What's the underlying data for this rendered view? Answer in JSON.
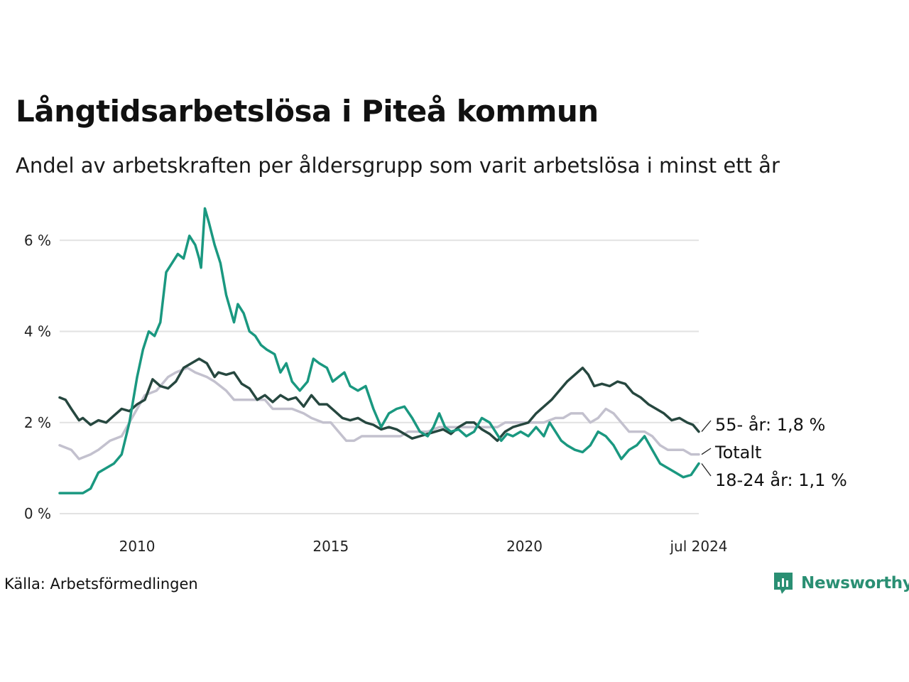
{
  "header": {
    "title": "Långtidsarbetslösa i Piteå kommun",
    "subtitle": "Andel av arbetskraften per åldersgrupp som varit arbetslösa i minst ett år"
  },
  "footer": {
    "source": "Källa: Arbetsförmedlingen",
    "brand": "Newsworthy",
    "brand_icon": "newsworthy-logo-icon"
  },
  "colors": {
    "youth": "#1a9880",
    "senior": "#26473f",
    "total": "#c3c1ce",
    "grid": "#e2e2e2",
    "brand": "#2a8f73"
  },
  "chart_data": {
    "type": "line",
    "title": "Långtidsarbetslösa i Piteå kommun",
    "subtitle": "Andel av arbetskraften per åldersgrupp som varit arbetslösa i minst ett år",
    "xlabel": "",
    "ylabel": "",
    "xlim": [
      2008.0,
      2024.5
    ],
    "ylim": [
      0,
      6.8
    ],
    "grid": true,
    "y_ticks": [
      {
        "value": 0,
        "label": "0 %"
      },
      {
        "value": 2,
        "label": "2 %"
      },
      {
        "value": 4,
        "label": "4 %"
      },
      {
        "value": 6,
        "label": "6 %"
      }
    ],
    "x_ticks": [
      {
        "value": 2010,
        "label": "2010"
      },
      {
        "value": 2015,
        "label": "2015"
      },
      {
        "value": 2020,
        "label": "2020"
      },
      {
        "value": 2024.5,
        "label": "jul 2024"
      }
    ],
    "series": [
      {
        "name": "Totalt",
        "key": "total",
        "label": "Totalt",
        "points": [
          [
            2008.0,
            1.5
          ],
          [
            2008.3,
            1.4
          ],
          [
            2008.5,
            1.2
          ],
          [
            2008.8,
            1.3
          ],
          [
            2009.0,
            1.4
          ],
          [
            2009.3,
            1.6
          ],
          [
            2009.6,
            1.7
          ],
          [
            2009.8,
            2.0
          ],
          [
            2010.0,
            2.3
          ],
          [
            2010.2,
            2.6
          ],
          [
            2010.5,
            2.7
          ],
          [
            2010.8,
            3.0
          ],
          [
            2011.0,
            3.1
          ],
          [
            2011.3,
            3.2
          ],
          [
            2011.5,
            3.1
          ],
          [
            2011.8,
            3.0
          ],
          [
            2012.0,
            2.9
          ],
          [
            2012.3,
            2.7
          ],
          [
            2012.5,
            2.5
          ],
          [
            2012.8,
            2.5
          ],
          [
            2013.0,
            2.5
          ],
          [
            2013.3,
            2.5
          ],
          [
            2013.5,
            2.3
          ],
          [
            2013.8,
            2.3
          ],
          [
            2014.0,
            2.3
          ],
          [
            2014.3,
            2.2
          ],
          [
            2014.5,
            2.1
          ],
          [
            2014.8,
            2.0
          ],
          [
            2015.0,
            2.0
          ],
          [
            2015.2,
            1.8
          ],
          [
            2015.4,
            1.6
          ],
          [
            2015.6,
            1.6
          ],
          [
            2015.8,
            1.7
          ],
          [
            2016.0,
            1.7
          ],
          [
            2016.3,
            1.7
          ],
          [
            2016.5,
            1.7
          ],
          [
            2016.8,
            1.7
          ],
          [
            2017.0,
            1.8
          ],
          [
            2017.3,
            1.8
          ],
          [
            2017.5,
            1.8
          ],
          [
            2017.8,
            1.9
          ],
          [
            2018.0,
            1.9
          ],
          [
            2018.3,
            1.9
          ],
          [
            2018.5,
            1.9
          ],
          [
            2018.8,
            1.9
          ],
          [
            2019.0,
            1.9
          ],
          [
            2019.3,
            1.9
          ],
          [
            2019.5,
            2.0
          ],
          [
            2019.8,
            2.0
          ],
          [
            2020.0,
            2.0
          ],
          [
            2020.3,
            2.0
          ],
          [
            2020.5,
            2.0
          ],
          [
            2020.8,
            2.1
          ],
          [
            2021.0,
            2.1
          ],
          [
            2021.2,
            2.2
          ],
          [
            2021.5,
            2.2
          ],
          [
            2021.7,
            2.0
          ],
          [
            2021.9,
            2.1
          ],
          [
            2022.1,
            2.3
          ],
          [
            2022.3,
            2.2
          ],
          [
            2022.5,
            2.0
          ],
          [
            2022.7,
            1.8
          ],
          [
            2022.9,
            1.8
          ],
          [
            2023.1,
            1.8
          ],
          [
            2023.3,
            1.7
          ],
          [
            2023.5,
            1.5
          ],
          [
            2023.7,
            1.4
          ],
          [
            2023.9,
            1.4
          ],
          [
            2024.1,
            1.4
          ],
          [
            2024.3,
            1.3
          ],
          [
            2024.5,
            1.3
          ]
        ]
      },
      {
        "name": "55- år",
        "key": "senior",
        "label": "55- år: 1,8 %",
        "points": [
          [
            2008.0,
            2.55
          ],
          [
            2008.15,
            2.5
          ],
          [
            2008.3,
            2.3
          ],
          [
            2008.5,
            2.05
          ],
          [
            2008.6,
            2.1
          ],
          [
            2008.8,
            1.95
          ],
          [
            2009.0,
            2.05
          ],
          [
            2009.2,
            2.0
          ],
          [
            2009.4,
            2.15
          ],
          [
            2009.6,
            2.3
          ],
          [
            2009.8,
            2.25
          ],
          [
            2010.0,
            2.4
          ],
          [
            2010.2,
            2.5
          ],
          [
            2010.4,
            2.95
          ],
          [
            2010.6,
            2.8
          ],
          [
            2010.8,
            2.75
          ],
          [
            2011.0,
            2.9
          ],
          [
            2011.2,
            3.2
          ],
          [
            2011.4,
            3.3
          ],
          [
            2011.6,
            3.4
          ],
          [
            2011.8,
            3.3
          ],
          [
            2012.0,
            3.0
          ],
          [
            2012.1,
            3.1
          ],
          [
            2012.3,
            3.05
          ],
          [
            2012.5,
            3.1
          ],
          [
            2012.7,
            2.85
          ],
          [
            2012.9,
            2.75
          ],
          [
            2013.1,
            2.5
          ],
          [
            2013.3,
            2.6
          ],
          [
            2013.5,
            2.45
          ],
          [
            2013.7,
            2.6
          ],
          [
            2013.9,
            2.5
          ],
          [
            2014.1,
            2.55
          ],
          [
            2014.3,
            2.35
          ],
          [
            2014.5,
            2.6
          ],
          [
            2014.7,
            2.4
          ],
          [
            2014.9,
            2.4
          ],
          [
            2015.1,
            2.25
          ],
          [
            2015.3,
            2.1
          ],
          [
            2015.5,
            2.05
          ],
          [
            2015.7,
            2.1
          ],
          [
            2015.9,
            2.0
          ],
          [
            2016.1,
            1.95
          ],
          [
            2016.3,
            1.85
          ],
          [
            2016.5,
            1.9
          ],
          [
            2016.7,
            1.85
          ],
          [
            2016.9,
            1.75
          ],
          [
            2017.1,
            1.65
          ],
          [
            2017.3,
            1.7
          ],
          [
            2017.5,
            1.75
          ],
          [
            2017.7,
            1.8
          ],
          [
            2017.9,
            1.85
          ],
          [
            2018.1,
            1.75
          ],
          [
            2018.3,
            1.9
          ],
          [
            2018.5,
            2.0
          ],
          [
            2018.7,
            2.0
          ],
          [
            2018.9,
            1.85
          ],
          [
            2019.1,
            1.75
          ],
          [
            2019.3,
            1.6
          ],
          [
            2019.5,
            1.8
          ],
          [
            2019.7,
            1.9
          ],
          [
            2019.9,
            1.95
          ],
          [
            2020.1,
            2.0
          ],
          [
            2020.3,
            2.2
          ],
          [
            2020.5,
            2.35
          ],
          [
            2020.7,
            2.5
          ],
          [
            2020.9,
            2.7
          ],
          [
            2021.1,
            2.9
          ],
          [
            2021.3,
            3.05
          ],
          [
            2021.5,
            3.2
          ],
          [
            2021.65,
            3.05
          ],
          [
            2021.8,
            2.8
          ],
          [
            2022.0,
            2.85
          ],
          [
            2022.2,
            2.8
          ],
          [
            2022.4,
            2.9
          ],
          [
            2022.6,
            2.85
          ],
          [
            2022.8,
            2.65
          ],
          [
            2023.0,
            2.55
          ],
          [
            2023.2,
            2.4
          ],
          [
            2023.4,
            2.3
          ],
          [
            2023.6,
            2.2
          ],
          [
            2023.8,
            2.05
          ],
          [
            2024.0,
            2.1
          ],
          [
            2024.2,
            2.0
          ],
          [
            2024.35,
            1.95
          ],
          [
            2024.5,
            1.8
          ]
        ]
      },
      {
        "name": "18-24 år",
        "key": "youth",
        "label": "18-24 år: 1,1 %",
        "points": [
          [
            2008.0,
            0.45
          ],
          [
            2008.2,
            0.45
          ],
          [
            2008.4,
            0.45
          ],
          [
            2008.6,
            0.45
          ],
          [
            2008.8,
            0.55
          ],
          [
            2009.0,
            0.9
          ],
          [
            2009.2,
            1.0
          ],
          [
            2009.4,
            1.1
          ],
          [
            2009.6,
            1.3
          ],
          [
            2009.8,
            2.0
          ],
          [
            2010.0,
            3.0
          ],
          [
            2010.15,
            3.6
          ],
          [
            2010.3,
            4.0
          ],
          [
            2010.45,
            3.9
          ],
          [
            2010.6,
            4.2
          ],
          [
            2010.75,
            5.3
          ],
          [
            2010.9,
            5.5
          ],
          [
            2011.05,
            5.7
          ],
          [
            2011.2,
            5.6
          ],
          [
            2011.35,
            6.1
          ],
          [
            2011.5,
            5.9
          ],
          [
            2011.6,
            5.6
          ],
          [
            2011.65,
            5.4
          ],
          [
            2011.75,
            6.7
          ],
          [
            2011.85,
            6.4
          ],
          [
            2012.0,
            5.9
          ],
          [
            2012.15,
            5.5
          ],
          [
            2012.3,
            4.8
          ],
          [
            2012.5,
            4.2
          ],
          [
            2012.6,
            4.6
          ],
          [
            2012.75,
            4.4
          ],
          [
            2012.9,
            4.0
          ],
          [
            2013.05,
            3.9
          ],
          [
            2013.2,
            3.7
          ],
          [
            2013.35,
            3.6
          ],
          [
            2013.55,
            3.5
          ],
          [
            2013.7,
            3.1
          ],
          [
            2013.85,
            3.3
          ],
          [
            2014.0,
            2.9
          ],
          [
            2014.2,
            2.7
          ],
          [
            2014.4,
            2.9
          ],
          [
            2014.55,
            3.4
          ],
          [
            2014.7,
            3.3
          ],
          [
            2014.9,
            3.2
          ],
          [
            2015.05,
            2.9
          ],
          [
            2015.2,
            3.0
          ],
          [
            2015.35,
            3.1
          ],
          [
            2015.5,
            2.8
          ],
          [
            2015.7,
            2.7
          ],
          [
            2015.9,
            2.8
          ],
          [
            2016.1,
            2.3
          ],
          [
            2016.3,
            1.9
          ],
          [
            2016.5,
            2.2
          ],
          [
            2016.7,
            2.3
          ],
          [
            2016.9,
            2.35
          ],
          [
            2017.1,
            2.1
          ],
          [
            2017.3,
            1.8
          ],
          [
            2017.5,
            1.7
          ],
          [
            2017.65,
            1.9
          ],
          [
            2017.8,
            2.2
          ],
          [
            2017.95,
            1.9
          ],
          [
            2018.1,
            1.8
          ],
          [
            2018.3,
            1.85
          ],
          [
            2018.5,
            1.7
          ],
          [
            2018.7,
            1.8
          ],
          [
            2018.9,
            2.1
          ],
          [
            2019.1,
            2.0
          ],
          [
            2019.25,
            1.8
          ],
          [
            2019.4,
            1.6
          ],
          [
            2019.55,
            1.75
          ],
          [
            2019.7,
            1.7
          ],
          [
            2019.9,
            1.8
          ],
          [
            2020.1,
            1.7
          ],
          [
            2020.3,
            1.9
          ],
          [
            2020.5,
            1.7
          ],
          [
            2020.65,
            2.0
          ],
          [
            2020.8,
            1.8
          ],
          [
            2020.95,
            1.6
          ],
          [
            2021.1,
            1.5
          ],
          [
            2021.3,
            1.4
          ],
          [
            2021.5,
            1.35
          ],
          [
            2021.7,
            1.5
          ],
          [
            2021.9,
            1.8
          ],
          [
            2022.1,
            1.7
          ],
          [
            2022.3,
            1.5
          ],
          [
            2022.5,
            1.2
          ],
          [
            2022.7,
            1.4
          ],
          [
            2022.9,
            1.5
          ],
          [
            2023.1,
            1.7
          ],
          [
            2023.3,
            1.4
          ],
          [
            2023.5,
            1.1
          ],
          [
            2023.7,
            1.0
          ],
          [
            2023.9,
            0.9
          ],
          [
            2024.1,
            0.8
          ],
          [
            2024.3,
            0.85
          ],
          [
            2024.5,
            1.1
          ]
        ]
      }
    ]
  }
}
